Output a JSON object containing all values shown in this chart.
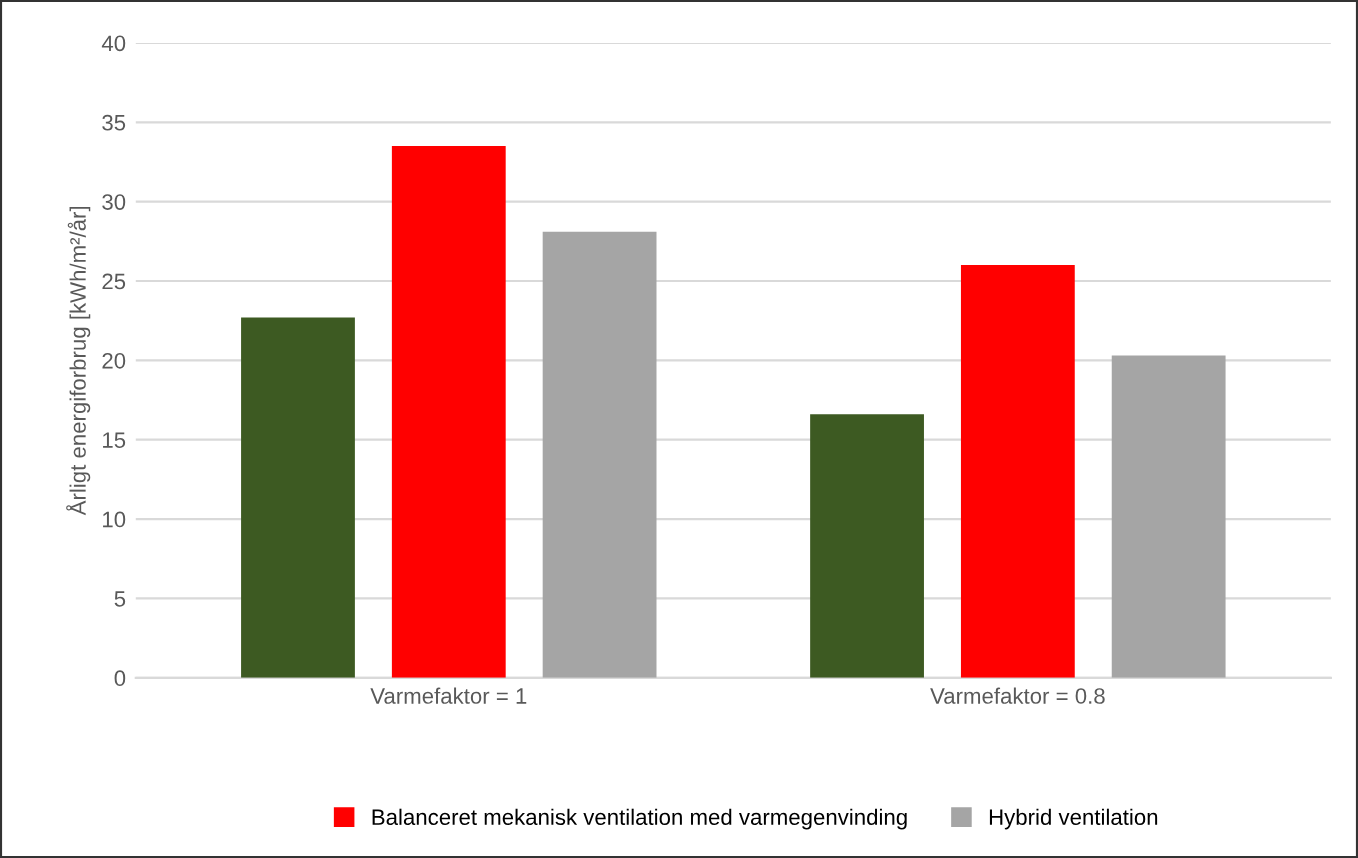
{
  "chart_data": {
    "type": "bar",
    "ylabel": "Årligt energiforbrug [kWh/m²/år]",
    "categories": [
      "Varmefaktor = 1",
      "Varmefaktor = 0.8"
    ],
    "series": [
      {
        "color": "#3d5a22",
        "values": [
          22.7,
          16.6
        ]
      },
      {
        "name": "Balanceret mekanisk ventilation med varmegenvinding",
        "color": "#ff0000",
        "values": [
          33.5,
          26.0
        ]
      },
      {
        "name": "Hybrid ventilation",
        "color": "#a5a5a5",
        "values": [
          28.1,
          20.3
        ]
      }
    ],
    "ylim": [
      0,
      40
    ],
    "yticks": [
      0,
      5,
      10,
      15,
      20,
      25,
      30,
      35,
      40
    ],
    "grid": "y",
    "legend": "bottom"
  }
}
